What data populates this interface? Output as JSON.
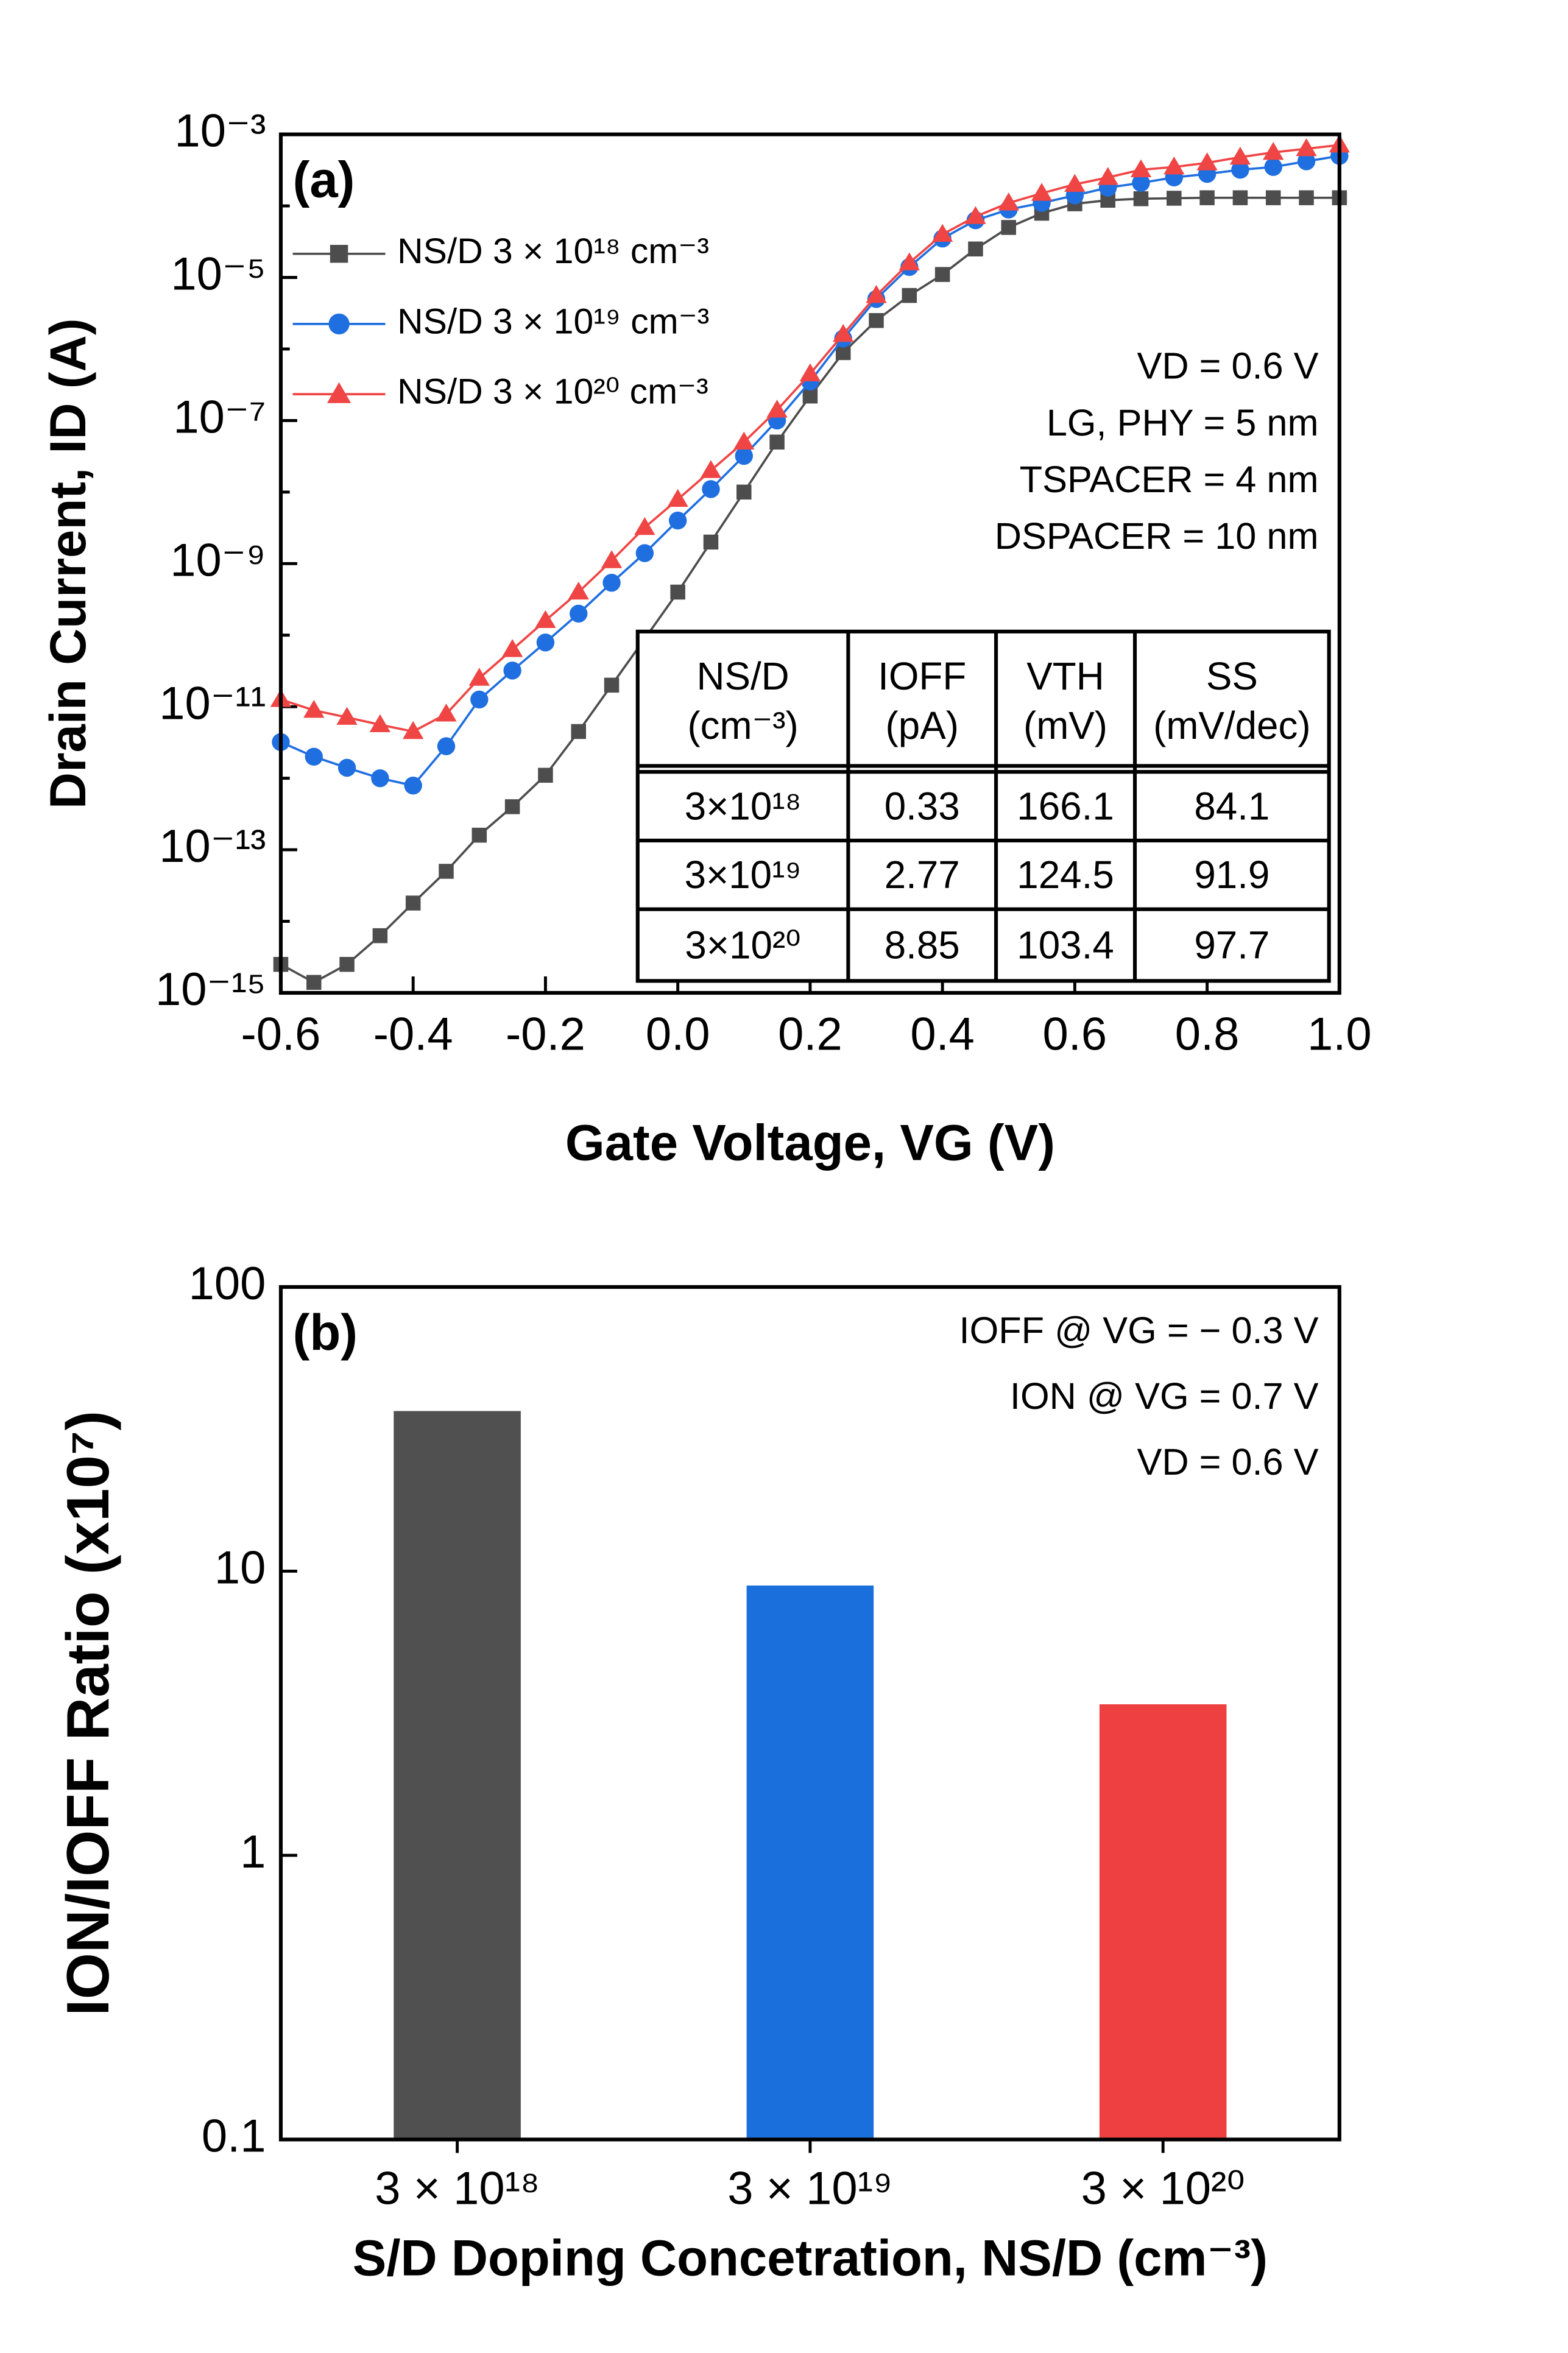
{
  "chart_data": [
    {
      "type": "line",
      "panel_label": "(a)",
      "xlabel": "Gate Voltage, VG (V)",
      "ylabel": "Drain Current, ID (A)",
      "xlim": [
        -0.6,
        1.0
      ],
      "xticks": [
        -0.6,
        -0.4,
        -0.2,
        {
          "value": 0,
          "label": "0.0"
        },
        0.2,
        0.4,
        0.6,
        0.8,
        {
          "value": 1,
          "label": "1.0"
        }
      ],
      "ylim": [
        1e-15,
        0.001
      ],
      "log_y": true,
      "yticks": [
        {
          "value": 1e-15,
          "label": "10⁻¹⁵"
        },
        {
          "value": 1e-13,
          "label": "10⁻¹³"
        },
        {
          "value": 1e-11,
          "label": "10⁻¹¹"
        },
        {
          "value": 1e-09,
          "label": "10⁻⁹"
        },
        {
          "value": 1e-07,
          "label": "10⁻⁷"
        },
        {
          "value": 1e-05,
          "label": "10⁻⁵"
        },
        {
          "value": 0.001,
          "label": "10⁻³"
        }
      ],
      "yticks_minor": [
        1e-14,
        1e-12,
        1e-10,
        1e-08,
        1e-06,
        0.0001
      ],
      "legend": "upper left",
      "x": [
        -0.6,
        -0.55,
        -0.5,
        -0.45,
        -0.4,
        -0.35,
        -0.3,
        -0.25,
        -0.2,
        -0.15,
        -0.1,
        -0.05,
        0,
        0.05,
        0.1,
        0.15,
        0.2,
        0.25,
        0.3,
        0.35,
        0.4,
        0.45,
        0.5,
        0.55,
        0.6,
        0.65,
        0.7,
        0.75,
        0.8,
        0.85,
        0.9,
        0.95,
        1.0
      ],
      "series": [
        {
          "name": "NS/D 3 × 10¹⁸ cm⁻³",
          "color": "#4d4d4d",
          "marker": "square",
          "values": [
            2.5e-15,
            1.4e-15,
            2.5e-15,
            6.3e-15,
            1.8e-14,
            5e-14,
            1.6e-13,
            4e-13,
            1.1e-12,
            4.5e-12,
            2e-11,
            8.9e-11,
            4e-10,
            2e-09,
            1e-08,
            5e-08,
            2.2e-07,
            8.9e-07,
            2.5e-06,
            5.6e-06,
            1.1e-05,
            2.5e-05,
            5e-05,
            7.9e-05,
            0.000107,
            0.00012,
            0.000126,
            0.000128,
            0.00013,
            0.00013,
            0.00013,
            0.00013,
            0.00013
          ]
        },
        {
          "name": "NS/D 3 × 10¹⁹ cm⁻³",
          "color": "#1f6fe0",
          "marker": "circle",
          "values": [
            3.2e-12,
            2e-12,
            1.4e-12,
            1e-12,
            7.9e-13,
            2.8e-12,
            1.26e-11,
            3.2e-11,
            7.9e-11,
            2e-10,
            5.4e-10,
            1.4e-09,
            4e-09,
            1.1e-08,
            3.2e-08,
            1e-07,
            3.5e-07,
            1.4e-06,
            5e-06,
            1.4e-05,
            3.5e-05,
            6.3e-05,
            8.9e-05,
            0.00011,
            0.00014,
            0.00018,
            0.00021,
            0.00025,
            0.00028,
            0.00032,
            0.00035,
            0.00042,
            0.0005
          ]
        },
        {
          "name": "NS/D 3 × 10²⁰ cm⁻³",
          "color": "#f04545",
          "marker": "triangle",
          "values": [
            1.26e-11,
            8.9e-12,
            7.1e-12,
            5.6e-12,
            4.5e-12,
            7.9e-12,
            2.5e-11,
            6.3e-11,
            1.6e-10,
            4e-10,
            1.1e-09,
            3.2e-09,
            7.9e-09,
            2e-08,
            5e-08,
            1.4e-07,
            4.5e-07,
            1.6e-06,
            5.6e-06,
            1.6e-05,
            4e-05,
            7.1e-05,
            0.00011,
            0.00015,
            0.0002,
            0.00025,
            0.00032,
            0.00035,
            0.0004,
            0.00048,
            0.00056,
            0.00063,
            0.00071
          ]
        }
      ],
      "annotations": [
        "VD = 0.6 V",
        "LG, PHY = 5 nm",
        "TSPACER = 4 nm",
        "DSPACER = 10 nm"
      ],
      "table": {
        "headers": [
          [
            "NS/D",
            "(cm⁻³)"
          ],
          [
            "IOFF",
            "(pA)"
          ],
          [
            "VTH",
            "(mV)"
          ],
          [
            "SS",
            "(mV/dec)"
          ]
        ],
        "rows": [
          [
            "3×10¹⁸",
            0.33,
            166.1,
            84.1
          ],
          [
            "3×10¹⁹",
            2.77,
            124.5,
            91.9
          ],
          [
            "3×10²⁰",
            8.85,
            103.4,
            97.7
          ]
        ]
      }
    },
    {
      "type": "bar",
      "panel_label": "(b)",
      "xlabel": "S/D Doping Concetration, NS/D (cm⁻³)",
      "ylabel": "ION/IOFF Ratio (x10⁷)",
      "categories": [
        "3 × 10¹⁸",
        "3 × 10¹⁹",
        "3 × 10²⁰"
      ],
      "values": [
        36.6,
        8.9,
        3.4
      ],
      "colors": [
        "#505050",
        "#1a6fdc",
        "#ee4040"
      ],
      "ylim": [
        0.1,
        100
      ],
      "log_y": true,
      "yticks": [
        0.1,
        1,
        10,
        100
      ],
      "annotations": [
        "IOFF @ VG = − 0.3 V",
        "ION @ VG = 0.7 V",
        "VD = 0.6 V"
      ]
    }
  ]
}
